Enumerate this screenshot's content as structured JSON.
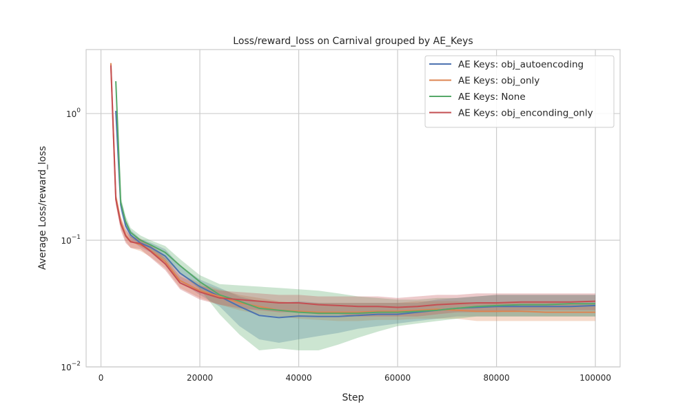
{
  "chart_data": {
    "type": "line",
    "title": "Loss/reward_loss on Carnival grouped by AE_Keys",
    "xlabel": "Step",
    "ylabel": "Average Loss/reward_loss",
    "yscale": "log",
    "xlim": [
      -3000,
      105000
    ],
    "ylim": [
      0.01,
      3.2
    ],
    "xticks": [
      0,
      20000,
      40000,
      60000,
      80000,
      100000
    ],
    "xtick_labels": [
      "0",
      "20000",
      "40000",
      "60000",
      "80000",
      "100000"
    ],
    "yticks": [
      0.01,
      0.1,
      1
    ],
    "grid": true,
    "legend_position": "top-right",
    "series": [
      {
        "name": "AE Keys: obj_autoencoding",
        "color": "#4c72b0",
        "x": [
          3000,
          4000,
          5000,
          6000,
          8000,
          10000,
          13000,
          16000,
          20000,
          24000,
          28000,
          32000,
          36000,
          40000,
          44000,
          48000,
          52000,
          56000,
          60000,
          64000,
          68000,
          72000,
          76000,
          80000,
          85000,
          90000,
          95000,
          100000
        ],
        "y": [
          1.05,
          0.19,
          0.13,
          0.11,
          0.095,
          0.088,
          0.075,
          0.055,
          0.043,
          0.036,
          0.03,
          0.0255,
          0.0245,
          0.0252,
          0.025,
          0.025,
          0.0255,
          0.026,
          0.026,
          0.027,
          0.028,
          0.029,
          0.0295,
          0.03,
          0.03,
          0.03,
          0.03,
          0.0305
        ],
        "lower": [
          1.0,
          0.17,
          0.12,
          0.1,
          0.088,
          0.08,
          0.064,
          0.047,
          0.037,
          0.03,
          0.021,
          0.0165,
          0.0155,
          0.0165,
          0.0175,
          0.0185,
          0.02,
          0.021,
          0.022,
          0.023,
          0.024,
          0.025,
          0.025,
          0.025,
          0.025,
          0.025,
          0.025,
          0.025
        ],
        "upper": [
          1.1,
          0.21,
          0.145,
          0.12,
          0.102,
          0.096,
          0.085,
          0.063,
          0.049,
          0.042,
          0.036,
          0.033,
          0.032,
          0.033,
          0.032,
          0.032,
          0.032,
          0.032,
          0.032,
          0.032,
          0.034,
          0.035,
          0.036,
          0.037,
          0.037,
          0.037,
          0.037,
          0.037
        ]
      },
      {
        "name": "AE Keys: obj_only",
        "color": "#dd8452",
        "x": [
          2000,
          3000,
          4000,
          5000,
          6000,
          8000,
          10000,
          13000,
          16000,
          20000,
          24000,
          28000,
          32000,
          36000,
          40000,
          44000,
          48000,
          52000,
          56000,
          60000,
          64000,
          68000,
          72000,
          76000,
          80000,
          85000,
          90000,
          95000,
          100000
        ],
        "y": [
          2.5,
          0.22,
          0.14,
          0.11,
          0.098,
          0.092,
          0.083,
          0.068,
          0.048,
          0.04,
          0.036,
          0.032,
          0.03,
          0.028,
          0.0275,
          0.027,
          0.027,
          0.027,
          0.0275,
          0.0275,
          0.028,
          0.0285,
          0.028,
          0.0275,
          0.0275,
          0.0275,
          0.027,
          0.027,
          0.027
        ],
        "lower": [
          2.4,
          0.2,
          0.125,
          0.098,
          0.087,
          0.082,
          0.074,
          0.06,
          0.042,
          0.035,
          0.031,
          0.028,
          0.026,
          0.025,
          0.024,
          0.0235,
          0.023,
          0.023,
          0.0235,
          0.0235,
          0.024,
          0.024,
          0.024,
          0.023,
          0.023,
          0.023,
          0.023,
          0.023,
          0.023
        ],
        "upper": [
          2.6,
          0.24,
          0.155,
          0.122,
          0.109,
          0.102,
          0.092,
          0.076,
          0.054,
          0.046,
          0.041,
          0.037,
          0.035,
          0.033,
          0.032,
          0.032,
          0.032,
          0.032,
          0.032,
          0.032,
          0.033,
          0.033,
          0.033,
          0.032,
          0.032,
          0.032,
          0.032,
          0.032,
          0.031
        ]
      },
      {
        "name": "AE Keys: None",
        "color": "#55a868",
        "x": [
          3000,
          4000,
          5000,
          6000,
          8000,
          10000,
          13000,
          16000,
          20000,
          24000,
          28000,
          32000,
          36000,
          40000,
          44000,
          48000,
          52000,
          56000,
          60000,
          64000,
          68000,
          72000,
          76000,
          80000,
          85000,
          90000,
          95000,
          100000
        ],
        "y": [
          1.8,
          0.2,
          0.14,
          0.115,
          0.1,
          0.092,
          0.08,
          0.063,
          0.047,
          0.037,
          0.033,
          0.029,
          0.028,
          0.027,
          0.0265,
          0.0265,
          0.0265,
          0.027,
          0.027,
          0.0275,
          0.028,
          0.029,
          0.03,
          0.0305,
          0.031,
          0.031,
          0.0315,
          0.0315
        ],
        "lower": [
          1.7,
          0.18,
          0.13,
          0.105,
          0.092,
          0.083,
          0.07,
          0.055,
          0.041,
          0.026,
          0.018,
          0.0135,
          0.014,
          0.0135,
          0.0135,
          0.015,
          0.017,
          0.019,
          0.021,
          0.022,
          0.023,
          0.024,
          0.025,
          0.025,
          0.025,
          0.025,
          0.025,
          0.025
        ],
        "upper": [
          1.9,
          0.22,
          0.155,
          0.125,
          0.109,
          0.1,
          0.09,
          0.071,
          0.053,
          0.045,
          0.044,
          0.043,
          0.042,
          0.041,
          0.04,
          0.038,
          0.036,
          0.035,
          0.034,
          0.034,
          0.035,
          0.035,
          0.036,
          0.037,
          0.037,
          0.037,
          0.037,
          0.037
        ]
      },
      {
        "name": "AE Keys: obj_enconding_only",
        "color": "#c44e52",
        "x": [
          2000,
          3000,
          4000,
          5000,
          6000,
          8000,
          10000,
          13000,
          16000,
          20000,
          24000,
          28000,
          32000,
          36000,
          40000,
          44000,
          48000,
          52000,
          56000,
          60000,
          64000,
          68000,
          72000,
          76000,
          80000,
          85000,
          90000,
          95000,
          100000
        ],
        "y": [
          2.4,
          0.21,
          0.135,
          0.108,
          0.097,
          0.094,
          0.082,
          0.065,
          0.046,
          0.039,
          0.035,
          0.034,
          0.033,
          0.032,
          0.032,
          0.031,
          0.0305,
          0.03,
          0.03,
          0.0295,
          0.03,
          0.031,
          0.0315,
          0.032,
          0.032,
          0.0325,
          0.0325,
          0.0325,
          0.033
        ],
        "lower": [
          2.3,
          0.19,
          0.12,
          0.095,
          0.087,
          0.085,
          0.073,
          0.058,
          0.041,
          0.034,
          0.031,
          0.029,
          0.028,
          0.027,
          0.027,
          0.026,
          0.026,
          0.025,
          0.025,
          0.025,
          0.025,
          0.026,
          0.027,
          0.027,
          0.027,
          0.028,
          0.028,
          0.028,
          0.028
        ],
        "upper": [
          2.5,
          0.23,
          0.15,
          0.12,
          0.107,
          0.103,
          0.091,
          0.072,
          0.052,
          0.044,
          0.04,
          0.039,
          0.038,
          0.037,
          0.037,
          0.036,
          0.036,
          0.036,
          0.036,
          0.035,
          0.036,
          0.037,
          0.037,
          0.038,
          0.038,
          0.038,
          0.038,
          0.038,
          0.038
        ]
      }
    ]
  }
}
